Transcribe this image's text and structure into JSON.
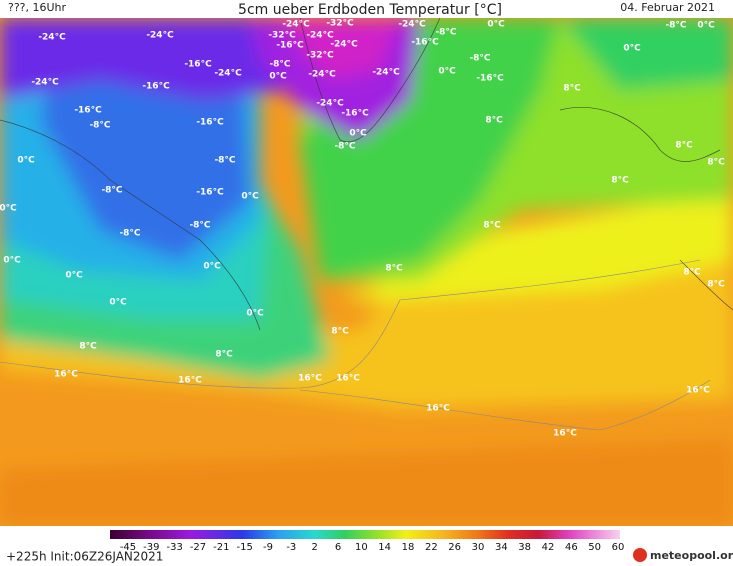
{
  "header": {
    "run": "???, 16Uhr",
    "title": "5cm ueber Erdboden Temperatur [°C]",
    "date": "04. Februar 2021"
  },
  "map_labels": [
    "-24°C",
    "-24°C",
    "-24°C",
    "-32°C",
    "-24°C",
    "0°C",
    "-8°C",
    "0°C",
    "-32°C",
    "-24°C",
    "-16°C",
    "-32°C",
    "-24°C",
    "-16°C",
    "-8°C",
    "0°C",
    "-16°C",
    "-8°C",
    "0°C",
    "-24°C",
    "-24°C",
    "-24°C",
    "0°C",
    "-8°C",
    "-16°C",
    "-24°C",
    "-16°C",
    "8°C",
    "-16°C",
    "-8°C",
    "-16°C",
    "-24°C",
    "-16°C",
    "8°C",
    "0°C",
    "-8°C",
    "0°C",
    "-8°C",
    "8°C",
    "8°C",
    "8°C",
    "-8°C",
    "-16°C",
    "0°C",
    "0°C",
    "-8°C",
    "8°C",
    "-8°C",
    "0°C",
    "0°C",
    "8°C",
    "0°C",
    "8°C",
    "8°C",
    "0°C",
    "0°C",
    "8°C",
    "8°C",
    "8°C",
    "16°C",
    "16°C",
    "16°C",
    "16°C",
    "16°C",
    "16°C",
    "16°C"
  ],
  "colorbar": {
    "ticks": [
      -45,
      -39,
      -33,
      -27,
      -21,
      -15,
      -9,
      -3,
      2,
      6,
      10,
      14,
      18,
      22,
      26,
      30,
      34,
      38,
      42,
      46,
      50,
      60
    ]
  },
  "footer": {
    "init": "+225h Init:06Z26JAN2021",
    "logo": "meteopool.org"
  }
}
